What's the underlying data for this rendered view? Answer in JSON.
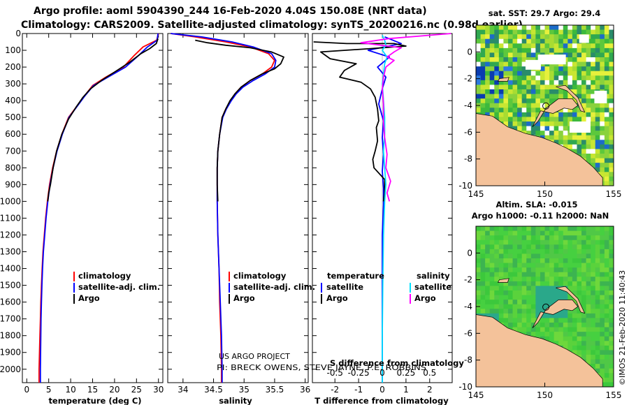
{
  "title_line1": "Argo profile: aoml 5904390_244 16-Feb-2020 4.04S 150.08E (NRT data)",
  "title_line2": "Climatology: CARS2009. Satellite-adjusted climatology: synTS_20200216.nc (0.98d earlier)",
  "right_vertical_text": "©IMOS 21-Feb-2020 11:40:43",
  "credit_line1": "US ARGO PROJECT",
  "credit_line2": "PI: BRECK OWENS, STEVE JAYNE, P.E. ROBBINS",
  "colors": {
    "climatology": "#ff0000",
    "satellite": "#0000ff",
    "argo": "#000000",
    "sal_satellite": "#00e0ff",
    "sal_argo": "#ff00ff",
    "land": "#f4c29a"
  },
  "chart_data": [
    {
      "type": "line",
      "id": "temperature",
      "xlabel": "temperature (deg C)",
      "ylabel": "",
      "xlim": [
        -1,
        31
      ],
      "ylim": [
        2080,
        0
      ],
      "xticks": [
        0,
        5,
        10,
        15,
        20,
        25,
        30
      ],
      "yticks": [
        0,
        100,
        200,
        300,
        400,
        500,
        600,
        700,
        800,
        900,
        1000,
        1100,
        1200,
        1300,
        1400,
        1500,
        1600,
        1700,
        1800,
        1900,
        2000
      ],
      "legend": [
        "climatology",
        "satellite-adj. clim.",
        "Argo"
      ],
      "series": [
        {
          "name": "climatology",
          "color": "#ff0000",
          "points": [
            [
              30,
              0
            ],
            [
              29.6,
              40
            ],
            [
              26.5,
              80
            ],
            [
              24.5,
              130
            ],
            [
              22,
              200
            ],
            [
              18,
              260
            ],
            [
              15,
              310
            ],
            [
              13.2,
              370
            ],
            [
              11.5,
              430
            ],
            [
              9.5,
              500
            ],
            [
              8,
              600
            ],
            [
              6.8,
              700
            ],
            [
              5.9,
              800
            ],
            [
              5.2,
              900
            ],
            [
              4.7,
              1000
            ],
            [
              4.3,
              1100
            ],
            [
              4.0,
              1200
            ],
            [
              3.7,
              1300
            ],
            [
              3.5,
              1400
            ],
            [
              3.35,
              1500
            ],
            [
              3.2,
              1600
            ],
            [
              3.1,
              1700
            ],
            [
              3.0,
              1800
            ],
            [
              2.9,
              1900
            ],
            [
              2.8,
              2000
            ],
            [
              2.8,
              2080
            ]
          ]
        },
        {
          "name": "satellite-adj. clim.",
          "color": "#0000ff",
          "points": [
            [
              29.9,
              0
            ],
            [
              29.7,
              40
            ],
            [
              27.5,
              80
            ],
            [
              25.5,
              130
            ],
            [
              22.5,
              200
            ],
            [
              18.5,
              260
            ],
            [
              15.2,
              310
            ],
            [
              13.3,
              370
            ],
            [
              11.6,
              430
            ],
            [
              9.6,
              500
            ],
            [
              8.1,
              600
            ],
            [
              6.9,
              700
            ],
            [
              6.0,
              800
            ],
            [
              5.3,
              900
            ],
            [
              4.8,
              1000
            ],
            [
              4.4,
              1100
            ],
            [
              4.1,
              1200
            ],
            [
              3.8,
              1300
            ],
            [
              3.6,
              1400
            ],
            [
              3.45,
              1500
            ],
            [
              3.35,
              1600
            ],
            [
              3.25,
              1700
            ],
            [
              3.2,
              1800
            ],
            [
              3.15,
              1900
            ],
            [
              3.1,
              2000
            ],
            [
              3.1,
              2080
            ]
          ]
        },
        {
          "name": "Argo",
          "color": "#000000",
          "points": [
            [
              29.9,
              30
            ],
            [
              29.5,
              60
            ],
            [
              28,
              90
            ],
            [
              26,
              120
            ],
            [
              23.5,
              170
            ],
            [
              20,
              230
            ],
            [
              17,
              280
            ],
            [
              14.5,
              330
            ],
            [
              12.8,
              380
            ],
            [
              11.2,
              440
            ],
            [
              9.5,
              510
            ],
            [
              8.0,
              600
            ],
            [
              6.8,
              700
            ],
            [
              6.0,
              800
            ],
            [
              5.4,
              900
            ],
            [
              5.0,
              950
            ],
            [
              4.8,
              1000
            ]
          ]
        }
      ]
    },
    {
      "type": "line",
      "id": "salinity",
      "xlabel": "salinity",
      "xlim": [
        33.75,
        36.05
      ],
      "ylim": [
        2080,
        0
      ],
      "xticks": [
        34,
        34.5,
        35,
        35.5,
        36
      ],
      "legend": [
        "climatology",
        "satellite-adj. clim.",
        "Argo"
      ],
      "series": [
        {
          "name": "climatology",
          "color": "#ff0000",
          "points": [
            [
              33.8,
              0
            ],
            [
              34.2,
              20
            ],
            [
              34.7,
              50
            ],
            [
              35.1,
              80
            ],
            [
              35.4,
              120
            ],
            [
              35.5,
              160
            ],
            [
              35.45,
              200
            ],
            [
              35.3,
              240
            ],
            [
              35.1,
              280
            ],
            [
              34.95,
              320
            ],
            [
              34.85,
              360
            ],
            [
              34.78,
              400
            ],
            [
              34.7,
              450
            ],
            [
              34.64,
              500
            ],
            [
              34.6,
              600
            ],
            [
              34.57,
              700
            ],
            [
              34.56,
              800
            ],
            [
              34.56,
              1000
            ],
            [
              34.57,
              1200
            ],
            [
              34.59,
              1400
            ],
            [
              34.6,
              1600
            ],
            [
              34.62,
              1800
            ],
            [
              34.63,
              2000
            ],
            [
              34.63,
              2080
            ]
          ]
        },
        {
          "name": "satellite-adj. clim.",
          "color": "#0000ff",
          "points": [
            [
              33.8,
              0
            ],
            [
              34.3,
              20
            ],
            [
              34.8,
              50
            ],
            [
              35.15,
              80
            ],
            [
              35.45,
              120
            ],
            [
              35.52,
              160
            ],
            [
              35.5,
              200
            ],
            [
              35.35,
              240
            ],
            [
              35.15,
              280
            ],
            [
              34.98,
              320
            ],
            [
              34.87,
              360
            ],
            [
              34.79,
              400
            ],
            [
              34.71,
              450
            ],
            [
              34.65,
              500
            ],
            [
              34.6,
              600
            ],
            [
              34.57,
              700
            ],
            [
              34.56,
              800
            ],
            [
              34.56,
              1000
            ],
            [
              34.57,
              1200
            ],
            [
              34.59,
              1400
            ],
            [
              34.61,
              1600
            ],
            [
              34.63,
              1800
            ],
            [
              34.64,
              2000
            ],
            [
              34.64,
              2080
            ]
          ]
        },
        {
          "name": "Argo",
          "color": "#000000",
          "points": [
            [
              34.2,
              40
            ],
            [
              34.4,
              55
            ],
            [
              34.7,
              70
            ],
            [
              35.1,
              85
            ],
            [
              35.45,
              110
            ],
            [
              35.65,
              140
            ],
            [
              35.6,
              180
            ],
            [
              35.5,
              210
            ],
            [
              35.3,
              240
            ],
            [
              35.1,
              280
            ],
            [
              34.95,
              320
            ],
            [
              34.85,
              360
            ],
            [
              34.77,
              400
            ],
            [
              34.7,
              450
            ],
            [
              34.64,
              500
            ],
            [
              34.6,
              600
            ],
            [
              34.57,
              700
            ],
            [
              34.56,
              800
            ],
            [
              34.56,
              900
            ],
            [
              34.57,
              1000
            ]
          ]
        }
      ]
    },
    {
      "type": "line",
      "id": "difference",
      "xlabel": "T difference from climatology",
      "xlabel_top": "S difference from climatology",
      "xlim": [
        -2.95,
        2.95
      ],
      "ylim": [
        2080,
        0
      ],
      "xticks": [
        -2,
        -1,
        0,
        1,
        2
      ],
      "xticks_s": [
        -0.5,
        -0.25,
        0,
        0.25,
        0.5
      ],
      "legend_left_title": "temperature",
      "legend_right_title": "salinity",
      "legend": [
        "satellite",
        "Argo",
        "satellite",
        "Argo"
      ],
      "series": [
        {
          "name": "T satellite",
          "color": "#0000ff",
          "points": [
            [
              0.1,
              20
            ],
            [
              0.8,
              60
            ],
            [
              -0.6,
              100
            ],
            [
              0.3,
              140
            ],
            [
              -0.2,
              200
            ],
            [
              0.15,
              260
            ],
            [
              0.0,
              330
            ],
            [
              -0.15,
              420
            ],
            [
              0.05,
              520
            ],
            [
              0.0,
              620
            ],
            [
              0.05,
              720
            ],
            [
              0.0,
              820
            ],
            [
              0.05,
              920
            ],
            [
              0.05,
              1020
            ],
            [
              0.0,
              1200
            ],
            [
              0.0,
              1500
            ],
            [
              0.0,
              1800
            ],
            [
              0.0,
              2080
            ]
          ]
        },
        {
          "name": "T Argo",
          "color": "#000000",
          "points": [
            [
              -2.9,
              50
            ],
            [
              -1.5,
              60
            ],
            [
              0.5,
              60
            ],
            [
              1.0,
              75
            ],
            [
              -0.5,
              90
            ],
            [
              -2.6,
              110
            ],
            [
              -2.2,
              150
            ],
            [
              -1.1,
              180
            ],
            [
              -1.6,
              220
            ],
            [
              -1.8,
              260
            ],
            [
              -0.9,
              290
            ],
            [
              -0.5,
              330
            ],
            [
              -0.3,
              380
            ],
            [
              -0.2,
              450
            ],
            [
              -0.15,
              520
            ],
            [
              -0.25,
              560
            ],
            [
              -0.2,
              640
            ],
            [
              -0.3,
              700
            ],
            [
              -0.4,
              750
            ],
            [
              -0.35,
              800
            ],
            [
              0.1,
              870
            ],
            [
              0.1,
              950
            ],
            [
              0.05,
              1000
            ]
          ]
        },
        {
          "name": "S satellite",
          "color": "#00e0ff",
          "points": [
            [
              0.0,
              10
            ],
            [
              0.1,
              40
            ],
            [
              0.15,
              70
            ],
            [
              0.0,
              100
            ],
            [
              0.2,
              140
            ],
            [
              0.1,
              180
            ],
            [
              0.05,
              240
            ],
            [
              0.0,
              300
            ],
            [
              0.05,
              400
            ],
            [
              0.1,
              500
            ],
            [
              0.1,
              600
            ],
            [
              0.05,
              700
            ],
            [
              0.1,
              800
            ],
            [
              0.15,
              900
            ],
            [
              0.1,
              1000
            ],
            [
              0.05,
              1200
            ],
            [
              0.02,
              1500
            ],
            [
              0.0,
              1800
            ],
            [
              0.0,
              2080
            ]
          ]
        },
        {
          "name": "S Argo",
          "color": "#ff00ff",
          "points": [
            [
              2.9,
              0
            ],
            [
              0.3,
              30
            ],
            [
              -0.9,
              55
            ],
            [
              0.8,
              85
            ],
            [
              0.5,
              110
            ],
            [
              0.2,
              140
            ],
            [
              0.5,
              160
            ],
            [
              0.15,
              200
            ],
            [
              0.05,
              260
            ],
            [
              0.0,
              330
            ],
            [
              0.05,
              420
            ],
            [
              0.05,
              520
            ],
            [
              0.1,
              620
            ],
            [
              0.2,
              720
            ],
            [
              0.15,
              800
            ],
            [
              0.35,
              880
            ],
            [
              0.2,
              950
            ],
            [
              0.3,
              1000
            ]
          ]
        }
      ]
    },
    {
      "type": "heatmap",
      "id": "sst_map",
      "title": "sat. SST: 29.7 Argo: 29.4",
      "xlim": [
        145,
        155
      ],
      "ylim": [
        -10,
        2
      ],
      "xticks": [
        145,
        150,
        155
      ],
      "yticks": [
        0,
        -2,
        -4,
        -6,
        -8,
        -10
      ]
    },
    {
      "type": "heatmap",
      "id": "sla_map",
      "title_line1": "Altim. SLA: -0.015",
      "title_line2": "Argo h1000: -0.11 h2000: NaN",
      "xlim": [
        145,
        155
      ],
      "ylim": [
        -10,
        2
      ],
      "xticks": [
        145,
        150,
        155
      ],
      "yticks": [
        0,
        -2,
        -4,
        -6,
        -8,
        -10
      ]
    }
  ]
}
